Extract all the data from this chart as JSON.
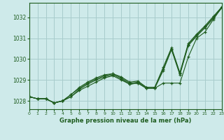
{
  "xlabel": "Graphe pression niveau de la mer (hPa)",
  "background_color": "#ceeaea",
  "grid_color": "#a8cccc",
  "line_color": "#1e5c1e",
  "ylim": [
    1027.6,
    1032.7
  ],
  "xlim": [
    0,
    23
  ],
  "yticks": [
    1028,
    1029,
    1030,
    1031,
    1032
  ],
  "xticks": [
    0,
    1,
    2,
    3,
    4,
    5,
    6,
    7,
    8,
    9,
    10,
    11,
    12,
    13,
    14,
    15,
    16,
    17,
    18,
    19,
    20,
    21,
    22,
    23
  ],
  "series": [
    [
      1028.2,
      1028.1,
      1028.1,
      1027.9,
      1028.0,
      1028.2,
      1028.5,
      1028.7,
      1028.9,
      1029.1,
      1029.2,
      1029.0,
      1028.8,
      1028.85,
      1028.6,
      1028.6,
      1028.85,
      1028.85,
      1028.85,
      1030.1,
      1031.0,
      1031.3,
      1031.9,
      1032.5
    ],
    [
      1028.2,
      1028.1,
      1028.1,
      1027.9,
      1028.0,
      1028.3,
      1028.6,
      1028.85,
      1029.05,
      1029.2,
      1029.3,
      1029.15,
      1028.9,
      1028.95,
      1028.65,
      1028.65,
      1029.5,
      1030.5,
      1029.3,
      1030.7,
      1031.15,
      1031.55,
      1032.0,
      1032.5
    ],
    [
      1028.2,
      1028.1,
      1028.1,
      1027.9,
      1028.0,
      1028.3,
      1028.65,
      1028.9,
      1029.1,
      1029.25,
      1029.3,
      1029.1,
      1028.85,
      1028.9,
      1028.65,
      1028.65,
      1029.6,
      1030.55,
      1029.35,
      1030.75,
      1031.2,
      1031.6,
      1032.05,
      1032.5
    ],
    [
      1028.2,
      1028.1,
      1028.1,
      1027.9,
      1028.0,
      1028.2,
      1028.55,
      1028.8,
      1029.0,
      1029.15,
      1029.25,
      1029.05,
      1028.8,
      1028.85,
      1028.6,
      1028.6,
      1029.45,
      1030.45,
      1029.25,
      1030.65,
      1031.1,
      1031.5,
      1031.95,
      1032.45
    ]
  ]
}
